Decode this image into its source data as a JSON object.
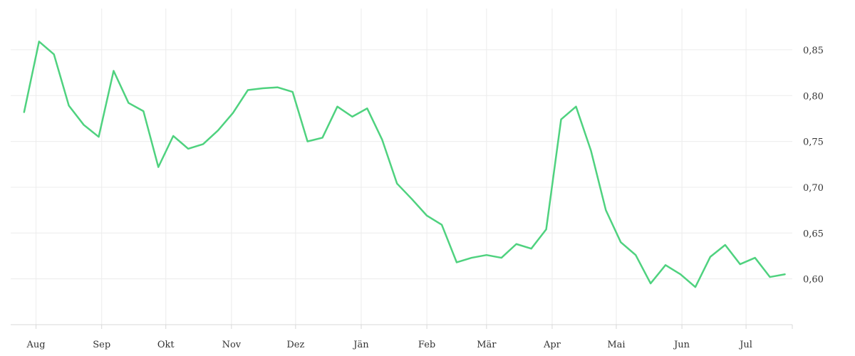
{
  "chart_data": {
    "type": "line",
    "title": "",
    "xlabel": "",
    "ylabel": "",
    "grid": true,
    "legend": "none",
    "x_ticks": [
      {
        "label": "Aug",
        "value": 0.8
      },
      {
        "label": "Sep",
        "value": 5.2
      },
      {
        "label": "Okt",
        "value": 9.5
      },
      {
        "label": "Nov",
        "value": 13.9
      },
      {
        "label": "Dez",
        "value": 18.2
      },
      {
        "label": "Jän",
        "value": 22.6
      },
      {
        "label": "Feb",
        "value": 27.0
      },
      {
        "label": "Mär",
        "value": 31.0
      },
      {
        "label": "Apr",
        "value": 35.4
      },
      {
        "label": "Mai",
        "value": 39.7
      },
      {
        "label": "Jun",
        "value": 44.1
      },
      {
        "label": "Jul",
        "value": 48.4
      }
    ],
    "xlim": [
      -0.9,
      51.5
    ],
    "y_ticks": [
      {
        "label": "0,60",
        "value": 0.6
      },
      {
        "label": "0,65",
        "value": 0.65
      },
      {
        "label": "0,70",
        "value": 0.7
      },
      {
        "label": "0,75",
        "value": 0.75
      },
      {
        "label": "0,80",
        "value": 0.8
      },
      {
        "label": "0,85",
        "value": 0.85
      }
    ],
    "ylim": [
      0.55,
      0.895
    ],
    "series": [
      {
        "color": "#4fd27f",
        "x": [
          0,
          1,
          2,
          3,
          4,
          5,
          6,
          7,
          8,
          9,
          10,
          11,
          12,
          13,
          14,
          15,
          16,
          17,
          18,
          19,
          20,
          21,
          22,
          23,
          24,
          25,
          26,
          27,
          28,
          29,
          30,
          31,
          32,
          33,
          34,
          35,
          36,
          37,
          38,
          39,
          40,
          41,
          42,
          43,
          44,
          45,
          46,
          47,
          48,
          49,
          50,
          51
        ],
        "values": [
          0.782,
          0.859,
          0.845,
          0.789,
          0.768,
          0.755,
          0.827,
          0.792,
          0.783,
          0.722,
          0.756,
          0.742,
          0.747,
          0.762,
          0.781,
          0.806,
          0.808,
          0.809,
          0.804,
          0.75,
          0.754,
          0.788,
          0.777,
          0.786,
          0.752,
          0.704,
          0.687,
          0.669,
          0.659,
          0.618,
          0.623,
          0.626,
          0.623,
          0.638,
          0.633,
          0.654,
          0.774,
          0.788,
          0.74,
          0.675,
          0.64,
          0.626,
          0.595,
          0.615,
          0.605,
          0.591,
          0.624,
          0.637,
          0.616,
          0.623,
          0.602,
          0.605
        ]
      }
    ]
  },
  "colors": {
    "line": "#4fd27f",
    "grid": "#ececec",
    "axis": "#d8d8d8",
    "text": "#333333"
  }
}
